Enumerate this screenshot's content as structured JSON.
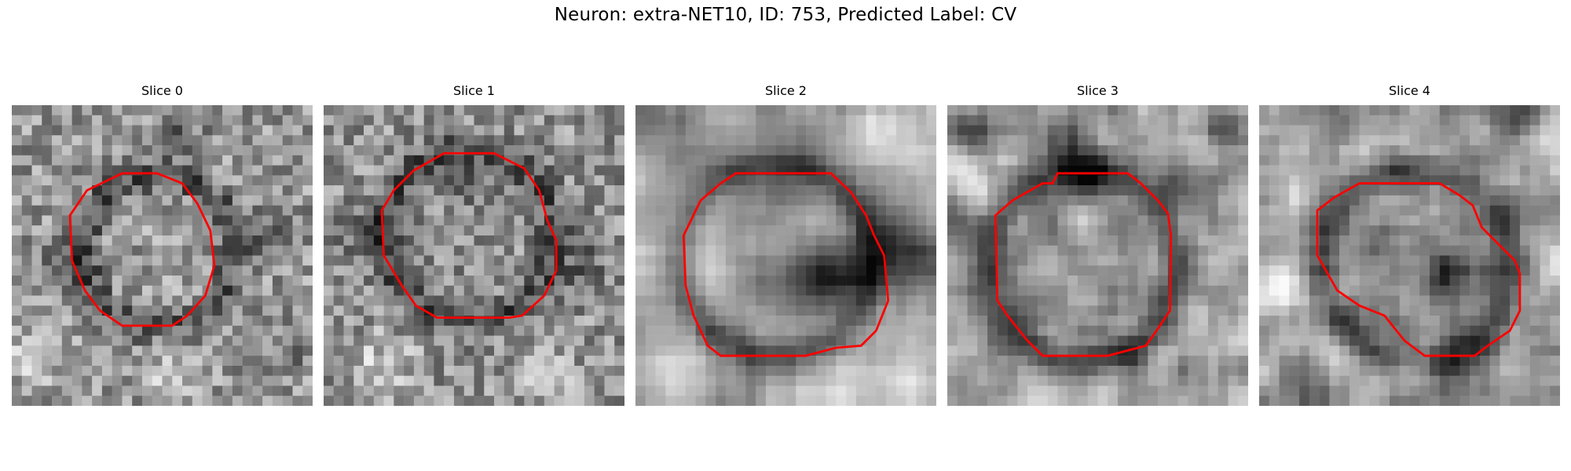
{
  "figure": {
    "suptitle": "Neuron: extra-NET10, ID: 753, Predicted Label: CV",
    "colormap": "gray",
    "contour_color": "#ff0000"
  },
  "panels": [
    {
      "title": "Slice 0",
      "boundary": "small octagon around a light granular center, surrounded by dark speckled membrane"
    },
    {
      "title": "Slice 1",
      "boundary": "octagon around mottled grey interior with dark patch near top"
    },
    {
      "title": "Slice 2",
      "boundary": "octagon over blurred cell with bright left lobe and dark right region"
    },
    {
      "title": "Slice 3",
      "boundary": "octagon around bright center with dark rim above and below"
    },
    {
      "title": "Slice 4",
      "boundary": "octagon skewed to right around grey interior with dark blob lower right"
    }
  ]
}
